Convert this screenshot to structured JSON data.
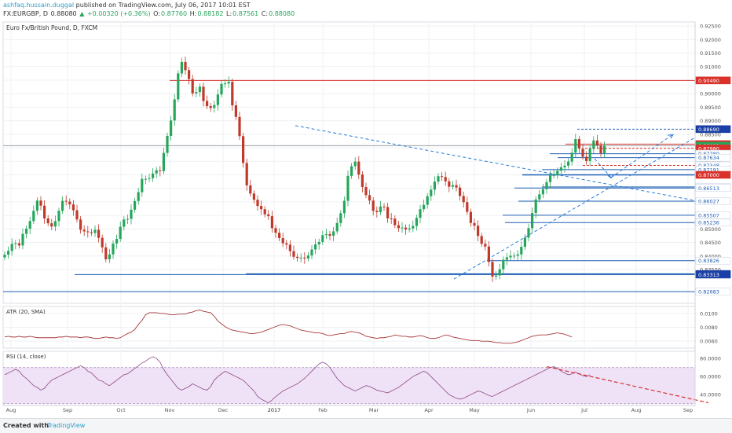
{
  "header": {
    "user": "ashfaq.hussain.duggal",
    "published": "published on TradingView.com, July 06, 2017 10:01 EST",
    "symbol": "FX:EURGBP, D",
    "price": "0.88080",
    "change_arrow": "▲",
    "change": "+0.00320 (+0.36%)",
    "o_label": "O:",
    "o_val": "0.87760",
    "h_label": "H:",
    "h_val": "0.88182",
    "l_label": "L:",
    "l_val": "0.87561",
    "c_label": "C:",
    "c_val": "0.88080"
  },
  "footer": {
    "created_with": "Created with",
    "brand": "TradingView"
  },
  "colors": {
    "up": "#26a65b",
    "down": "#c0392b",
    "trend": "#2a7ddb",
    "line_blue": "#1e5fb4",
    "line_red": "#d9312b",
    "atr": "#a8383b",
    "rsi": "#8b4a86",
    "rsi_band": "#efe1f6"
  },
  "chart_data": [
    {
      "type": "candlestick",
      "title": "Euro Fx/British Pound, D, FXCM",
      "ylim": [
        0.8225,
        0.9265
      ],
      "y_ticks": [
        "0.92500",
        "0.92000",
        "0.91500",
        "0.91000",
        "0.90500",
        "0.90000",
        "0.89500",
        "0.89000",
        "0.88500",
        "0.88000",
        "0.87500",
        "0.87000",
        "0.86500",
        "0.86000",
        "0.85500",
        "0.85000",
        "0.84500",
        "0.84000",
        "0.83500"
      ],
      "x_ticks": [
        "Aug",
        "Sep",
        "Oct",
        "Nov",
        "Dec",
        "2017",
        "Feb",
        "Mar",
        "Apr",
        "May",
        "Jun",
        "Jul",
        "Aug",
        "Sep"
      ],
      "closes": [
        0.8405,
        0.8419,
        0.8445,
        0.8447,
        0.8439,
        0.8482,
        0.8501,
        0.8529,
        0.8567,
        0.8605,
        0.8586,
        0.8539,
        0.8521,
        0.8509,
        0.8529,
        0.8567,
        0.8604,
        0.8601,
        0.8591,
        0.8569,
        0.8535,
        0.8497,
        0.8491,
        0.8488,
        0.8485,
        0.8497,
        0.8467,
        0.8432,
        0.8388,
        0.8406,
        0.8446,
        0.8463,
        0.8508,
        0.8535,
        0.8537,
        0.8571,
        0.8603,
        0.8636,
        0.8685,
        0.8685,
        0.8688,
        0.8705,
        0.8717,
        0.8714,
        0.8781,
        0.8844,
        0.8901,
        0.8979,
        0.9075,
        0.9117,
        0.9087,
        0.9054,
        0.9001,
        0.9006,
        0.9026,
        0.8973,
        0.8954,
        0.8947,
        0.8958,
        0.8997,
        0.9036,
        0.9038,
        0.9044,
        0.8957,
        0.8914,
        0.8843,
        0.8744,
        0.8661,
        0.8631,
        0.8608,
        0.8585,
        0.8573,
        0.8554,
        0.8547,
        0.8503,
        0.8486,
        0.8466,
        0.8447,
        0.8442,
        0.8418,
        0.8397,
        0.8393,
        0.8394,
        0.8391,
        0.8402,
        0.8424,
        0.8443,
        0.8452,
        0.8477,
        0.8481,
        0.8475,
        0.8491,
        0.8522,
        0.8558,
        0.8604,
        0.8696,
        0.8732,
        0.8749,
        0.8701,
        0.8655,
        0.8625,
        0.8605,
        0.8567,
        0.8562,
        0.8583,
        0.8581,
        0.8539,
        0.8538,
        0.8514,
        0.8503,
        0.8505,
        0.8498,
        0.8502,
        0.8511,
        0.8541,
        0.8573,
        0.8589,
        0.8621,
        0.8645,
        0.8675,
        0.8695,
        0.8692,
        0.8676,
        0.8656,
        0.8662,
        0.8653,
        0.8622,
        0.8599,
        0.8563,
        0.8522,
        0.8512,
        0.8474,
        0.8445,
        0.8435,
        0.8378,
        0.8324,
        0.8328,
        0.8351,
        0.8386,
        0.8395,
        0.8401,
        0.8401,
        0.8406,
        0.8434,
        0.8468,
        0.8503,
        0.8559,
        0.8609,
        0.8628,
        0.8647,
        0.8673,
        0.8698,
        0.8699,
        0.8715,
        0.8728,
        0.8734,
        0.8749,
        0.8782,
        0.8832,
        0.8797,
        0.8767,
        0.8751,
        0.8796,
        0.8827,
        0.8809,
        0.878,
        0.8808
      ],
      "overlays": {
        "hlevels": [
          "0.90490",
          "0.88690",
          "0.88136",
          "0.88080",
          "0.87980",
          "0.87780",
          "0.87634",
          "0.87348",
          "0.87191",
          "0.87000",
          "0.86552",
          "0.86513",
          "0.86027",
          "0.85507",
          "0.85236",
          "0.83826",
          "0.83336",
          "0.83313",
          "0.82683"
        ]
      }
    },
    {
      "type": "line",
      "title": "ATR (20, SMA)",
      "ylim": [
        0.005,
        0.011
      ],
      "y_ticks": [
        "0.0100",
        "0.0080",
        "0.0060"
      ],
      "values": [
        0.0066,
        0.0067,
        0.0066,
        0.0066,
        0.0067,
        0.0066,
        0.0066,
        0.0067,
        0.0066,
        0.0065,
        0.0065,
        0.0065,
        0.0065,
        0.0065,
        0.0065,
        0.0066,
        0.0066,
        0.0067,
        0.0066,
        0.0066,
        0.0066,
        0.0065,
        0.0066,
        0.0066,
        0.0065,
        0.0064,
        0.0064,
        0.0065,
        0.0066,
        0.0065,
        0.0065,
        0.0064,
        0.0065,
        0.0068,
        0.0071,
        0.0073,
        0.0077,
        0.0084,
        0.009,
        0.0098,
        0.0101,
        0.0101,
        0.0101,
        0.01,
        0.01,
        0.0099,
        0.0098,
        0.0098,
        0.0099,
        0.0099,
        0.0099,
        0.0101,
        0.0102,
        0.0104,
        0.0105,
        0.0103,
        0.0102,
        0.0101,
        0.0096,
        0.0089,
        0.0085,
        0.0081,
        0.0078,
        0.0076,
        0.0075,
        0.0074,
        0.0073,
        0.0072,
        0.0071,
        0.0071,
        0.0072,
        0.0073,
        0.0075,
        0.0077,
        0.0079,
        0.0081,
        0.0083,
        0.0084,
        0.0083,
        0.0082,
        0.008,
        0.0078,
        0.0076,
        0.0075,
        0.0074,
        0.0073,
        0.0072,
        0.0072,
        0.0071,
        0.0069,
        0.0068,
        0.0069,
        0.007,
        0.0071,
        0.0071,
        0.0073,
        0.0074,
        0.0073,
        0.0072,
        0.007,
        0.0067,
        0.0066,
        0.0065,
        0.0064,
        0.0065,
        0.0065,
        0.0066,
        0.0067,
        0.0069,
        0.0068,
        0.0067,
        0.0067,
        0.0066,
        0.0066,
        0.0067,
        0.0068,
        0.0067,
        0.0065,
        0.0064,
        0.0064,
        0.0065,
        0.0067,
        0.0069,
        0.0068,
        0.0066,
        0.0065,
        0.0064,
        0.0063,
        0.0062,
        0.0061,
        0.0061,
        0.0061,
        0.006,
        0.006,
        0.006,
        0.0059,
        0.0058,
        0.0058,
        0.0057,
        0.0057,
        0.0057,
        0.0058,
        0.0059,
        0.0061,
        0.0063,
        0.0065,
        0.0067,
        0.0068,
        0.0069,
        0.0069,
        0.0069,
        0.007,
        0.0071,
        0.0072,
        0.0071,
        0.007,
        0.0068,
        0.0066
      ]
    },
    {
      "type": "line",
      "title": "RSI (14, close)",
      "ylim": [
        28,
        88
      ],
      "y_ticks": [
        "80.0000",
        "60.0000",
        "40.0000"
      ],
      "band": [
        30,
        70
      ],
      "values": [
        62,
        64,
        66,
        68,
        66,
        61,
        58,
        54,
        50,
        48,
        45,
        47,
        52,
        56,
        58,
        60,
        62,
        64,
        66,
        68,
        70,
        72,
        70,
        66,
        64,
        60,
        56,
        55,
        52,
        50,
        53,
        56,
        59,
        62,
        63,
        66,
        69,
        72,
        75,
        77,
        80,
        82,
        80,
        76,
        68,
        62,
        57,
        52,
        47,
        45,
        47,
        49,
        52,
        50,
        48,
        46,
        45,
        49,
        56,
        60,
        63,
        66,
        64,
        62,
        60,
        58,
        56,
        52,
        48,
        44,
        38,
        35,
        33,
        31,
        34,
        38,
        41,
        44,
        46,
        48,
        50,
        52,
        55,
        58,
        62,
        66,
        70,
        74,
        76,
        74,
        70,
        64,
        58,
        54,
        50,
        48,
        46,
        44,
        46,
        48,
        50,
        49,
        47,
        45,
        44,
        43,
        42,
        44,
        46,
        48,
        51,
        54,
        57,
        60,
        62,
        64,
        66,
        64,
        60,
        56,
        52,
        48,
        44,
        40,
        38,
        36,
        35,
        36,
        38,
        40,
        42,
        44,
        43,
        41,
        39,
        38,
        40,
        42,
        44,
        46,
        48,
        50,
        52,
        54,
        56,
        58,
        60,
        62,
        64,
        66,
        68,
        70,
        71,
        69,
        66,
        64,
        62,
        63,
        65,
        63,
        61,
        60,
        62
      ]
    }
  ]
}
